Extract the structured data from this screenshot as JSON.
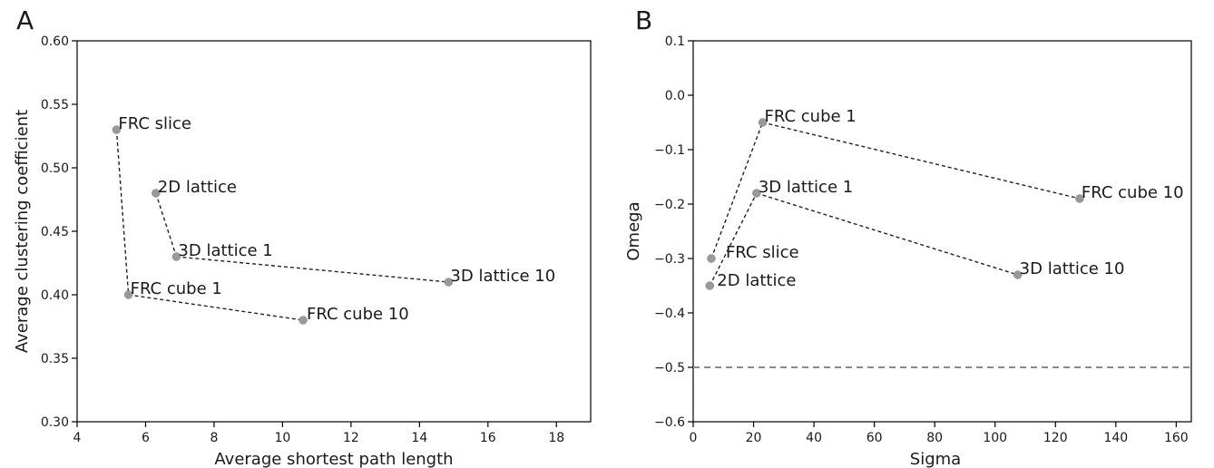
{
  "chart_data": [
    {
      "panel": "A",
      "type": "scatter",
      "xlabel": "Average shortest path length",
      "ylabel": "Average clustering coefficient",
      "xlim": [
        4,
        19
      ],
      "ylim": [
        0.3,
        0.6
      ],
      "xticks": [
        "4",
        "6",
        "8",
        "10",
        "12",
        "14",
        "16",
        "18"
      ],
      "yticks": [
        "0.30",
        "0.35",
        "0.40",
        "0.45",
        "0.50",
        "0.55",
        "0.60"
      ],
      "points": [
        {
          "label": "FRC slice",
          "x": 5.15,
          "y": 0.53
        },
        {
          "label": "2D lattice",
          "x": 6.3,
          "y": 0.48
        },
        {
          "label": "3D lattice 1",
          "x": 6.9,
          "y": 0.43
        },
        {
          "label": "3D lattice 10",
          "x": 14.85,
          "y": 0.41
        },
        {
          "label": "FRC cube 1",
          "x": 5.5,
          "y": 0.4
        },
        {
          "label": "FRC cube 10",
          "x": 10.6,
          "y": 0.38
        }
      ],
      "lines": [
        [
          "FRC slice",
          "FRC cube 1"
        ],
        [
          "FRC cube 1",
          "FRC cube 10"
        ],
        [
          "2D lattice",
          "3D lattice 1"
        ],
        [
          "3D lattice 1",
          "3D lattice 10"
        ]
      ],
      "grid": false,
      "legend": "none"
    },
    {
      "panel": "B",
      "type": "scatter",
      "xlabel": "Sigma",
      "ylabel": "Omega",
      "xlim": [
        0,
        165
      ],
      "ylim": [
        -0.6,
        0.1
      ],
      "xticks": [
        "0",
        "20",
        "40",
        "60",
        "80",
        "100",
        "120",
        "140",
        "160"
      ],
      "yticks": [
        "−0.6",
        "−0.5",
        "−0.4",
        "−0.3",
        "−0.2",
        "−0.1",
        "0.0",
        "0.1"
      ],
      "points": [
        {
          "label": "FRC cube 1",
          "x": 23.0,
          "y": -0.05
        },
        {
          "label": "FRC cube 10",
          "x": 128.0,
          "y": -0.19
        },
        {
          "label": "3D lattice 1",
          "x": 21.0,
          "y": -0.18
        },
        {
          "label": "3D lattice 10",
          "x": 107.5,
          "y": -0.33
        },
        {
          "label": "FRC slice",
          "x": 6.0,
          "y": -0.3
        },
        {
          "label": "2D lattice",
          "x": 5.5,
          "y": -0.35
        }
      ],
      "lines": [
        [
          "FRC slice",
          "FRC cube 1"
        ],
        [
          "FRC cube 1",
          "FRC cube 10"
        ],
        [
          "2D lattice",
          "3D lattice 1"
        ],
        [
          "3D lattice 1",
          "3D lattice 10"
        ]
      ],
      "reference_line": {
        "y": -0.5,
        "style": "dashed"
      },
      "grid": false,
      "legend": "none"
    }
  ]
}
